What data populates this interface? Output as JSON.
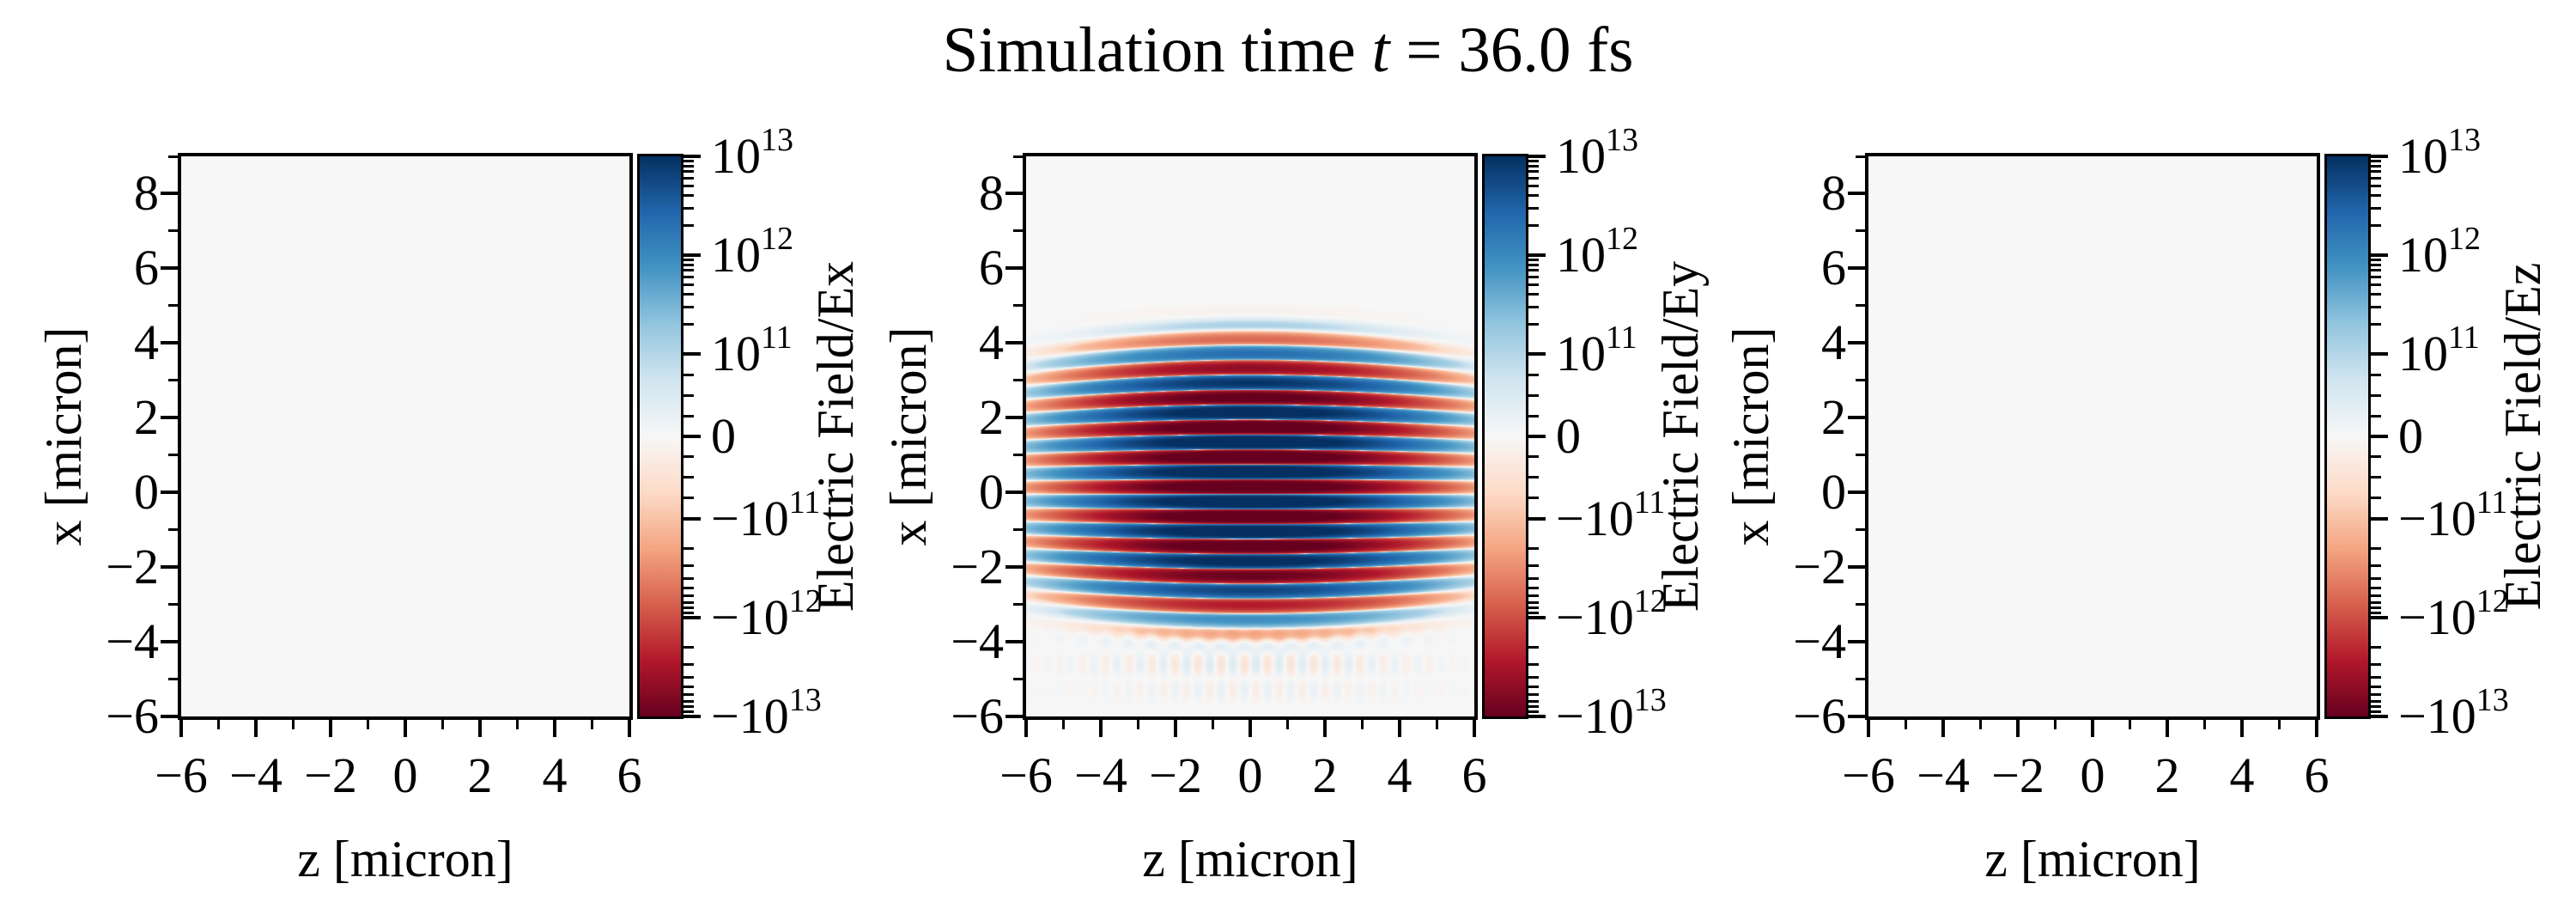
{
  "title": {
    "prefix": "Simulation time ",
    "var": "t",
    "suffix": " = 36.0 fs",
    "full": "Simulation time t = 36.0 fs"
  },
  "background": {
    "page": "#ffffff",
    "plot": "#f7f7f7"
  },
  "chart_data": {
    "type": "heatmap",
    "title": "Simulation time t = 36.0 fs",
    "grid": false,
    "axes": {
      "xlabel": "z [micron]",
      "ylabel": "x [micron]",
      "xlim": [
        -6,
        6
      ],
      "ylim": [
        -6,
        9
      ],
      "xticks": [
        -6,
        -4,
        -2,
        0,
        2,
        4,
        6
      ],
      "xticks_minor": [
        -5,
        -3,
        -1,
        1,
        3,
        5
      ],
      "yticks": [
        8,
        6,
        4,
        2,
        0,
        -2,
        -4,
        -6
      ],
      "yticks_minor": [
        9,
        7,
        5,
        3,
        1,
        -1,
        -3,
        -5
      ]
    },
    "colorscale": {
      "type": "symlog",
      "linthresh": 100000000000.0,
      "vmin": -10000000000000.0,
      "vmax": 10000000000000.0,
      "lin_g": 0.294,
      "cmap": "RdBu",
      "cmap_stops": [
        "#67001f",
        "#b2182b",
        "#d6604d",
        "#f4a582",
        "#fddbc7",
        "#f7f7f7",
        "#d1e5f0",
        "#92c5de",
        "#4393c3",
        "#2166ac",
        "#053061"
      ],
      "ticks": [
        {
          "label": "10^13",
          "value": 10000000000000.0
        },
        {
          "label": "10^12",
          "value": 1000000000000.0
        },
        {
          "label": "10^11",
          "value": 100000000000.0
        },
        {
          "label": "0",
          "value": 0
        },
        {
          "label": "-10^11",
          "value": -100000000000.0
        },
        {
          "label": "-10^12",
          "value": -1000000000000.0
        },
        {
          "label": "-10^13",
          "value": -10000000000000.0
        }
      ],
      "minor_mantissas": [
        2,
        3,
        4,
        5,
        6,
        7,
        8,
        9
      ],
      "minor_linear": [
        25000000000.0,
        50000000000.0,
        75000000000.0
      ]
    },
    "subplots": [
      {
        "name": "Ex",
        "xlabel": "z [micron]",
        "ylabel": "x [micron]",
        "colorbar_label": "Electric Field/Ex",
        "field": "zero"
      },
      {
        "name": "Ey",
        "xlabel": "z [micron]",
        "ylabel": "x [micron]",
        "colorbar_label": "Electric Field/Ey",
        "field": "pulse",
        "pulse_model": {
          "peak": 20000000000000.0,
          "wavelength": 0.8,
          "phase_center": -0.05,
          "env_center": 0.3,
          "long_width": 2.8,
          "long_exponent": 4,
          "trans_sigma": 2.9,
          "curvature": 0.0028,
          "artifact": {
            "amp": 50000000000.0,
            "center_x": -4.6,
            "sigma_x": 0.9,
            "z_period": 0.62,
            "x_period": 1.55,
            "z_sigma": 4.5
          }
        }
      },
      {
        "name": "Ez",
        "xlabel": "z [micron]",
        "ylabel": "x [micron]",
        "colorbar_label": "Electric Field/Ez",
        "field": "zero"
      }
    ]
  }
}
